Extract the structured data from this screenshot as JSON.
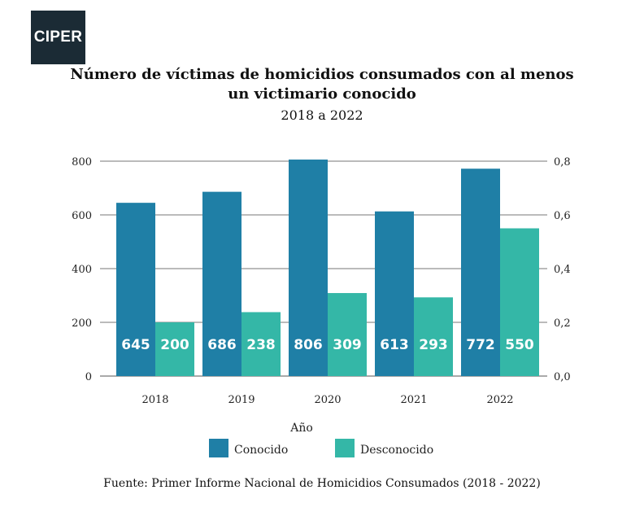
{
  "brand": {
    "logo_text": "CIPER"
  },
  "chart_data": {
    "type": "bar",
    "title": "Número de víctimas de homicidios consumados con al menos un victimario conocido",
    "title_lines": [
      "Número de víctimas de homicidios consumados con al menos",
      "un victimario conocido"
    ],
    "subtitle": "2018 a 2022",
    "xlabel": "Año",
    "categories": [
      "2018",
      "2019",
      "2020",
      "2021",
      "2022"
    ],
    "series": [
      {
        "name": "Conocido",
        "color": "#1f7fa6",
        "values": [
          645,
          686,
          806,
          613,
          772
        ],
        "labels": [
          "645",
          "686",
          "806",
          "613",
          "772"
        ]
      },
      {
        "name": "Desconocido",
        "color": "#34b7a7",
        "values": [
          200,
          238,
          309,
          293,
          550
        ],
        "labels": [
          "200",
          "238",
          "309",
          "293",
          "550"
        ]
      }
    ],
    "ylim": [
      0,
      800
    ],
    "y_ticks": [
      "0",
      "200",
      "400",
      "600",
      "800"
    ],
    "y2_ticks": [
      "0,0",
      "0,2",
      "0,4",
      "0,6",
      "0,8"
    ],
    "grid": true,
    "legend": "bottom-center",
    "source": "Fuente: Primer Informe Nacional de Homicidios Consumados (2018 - 2022)"
  }
}
